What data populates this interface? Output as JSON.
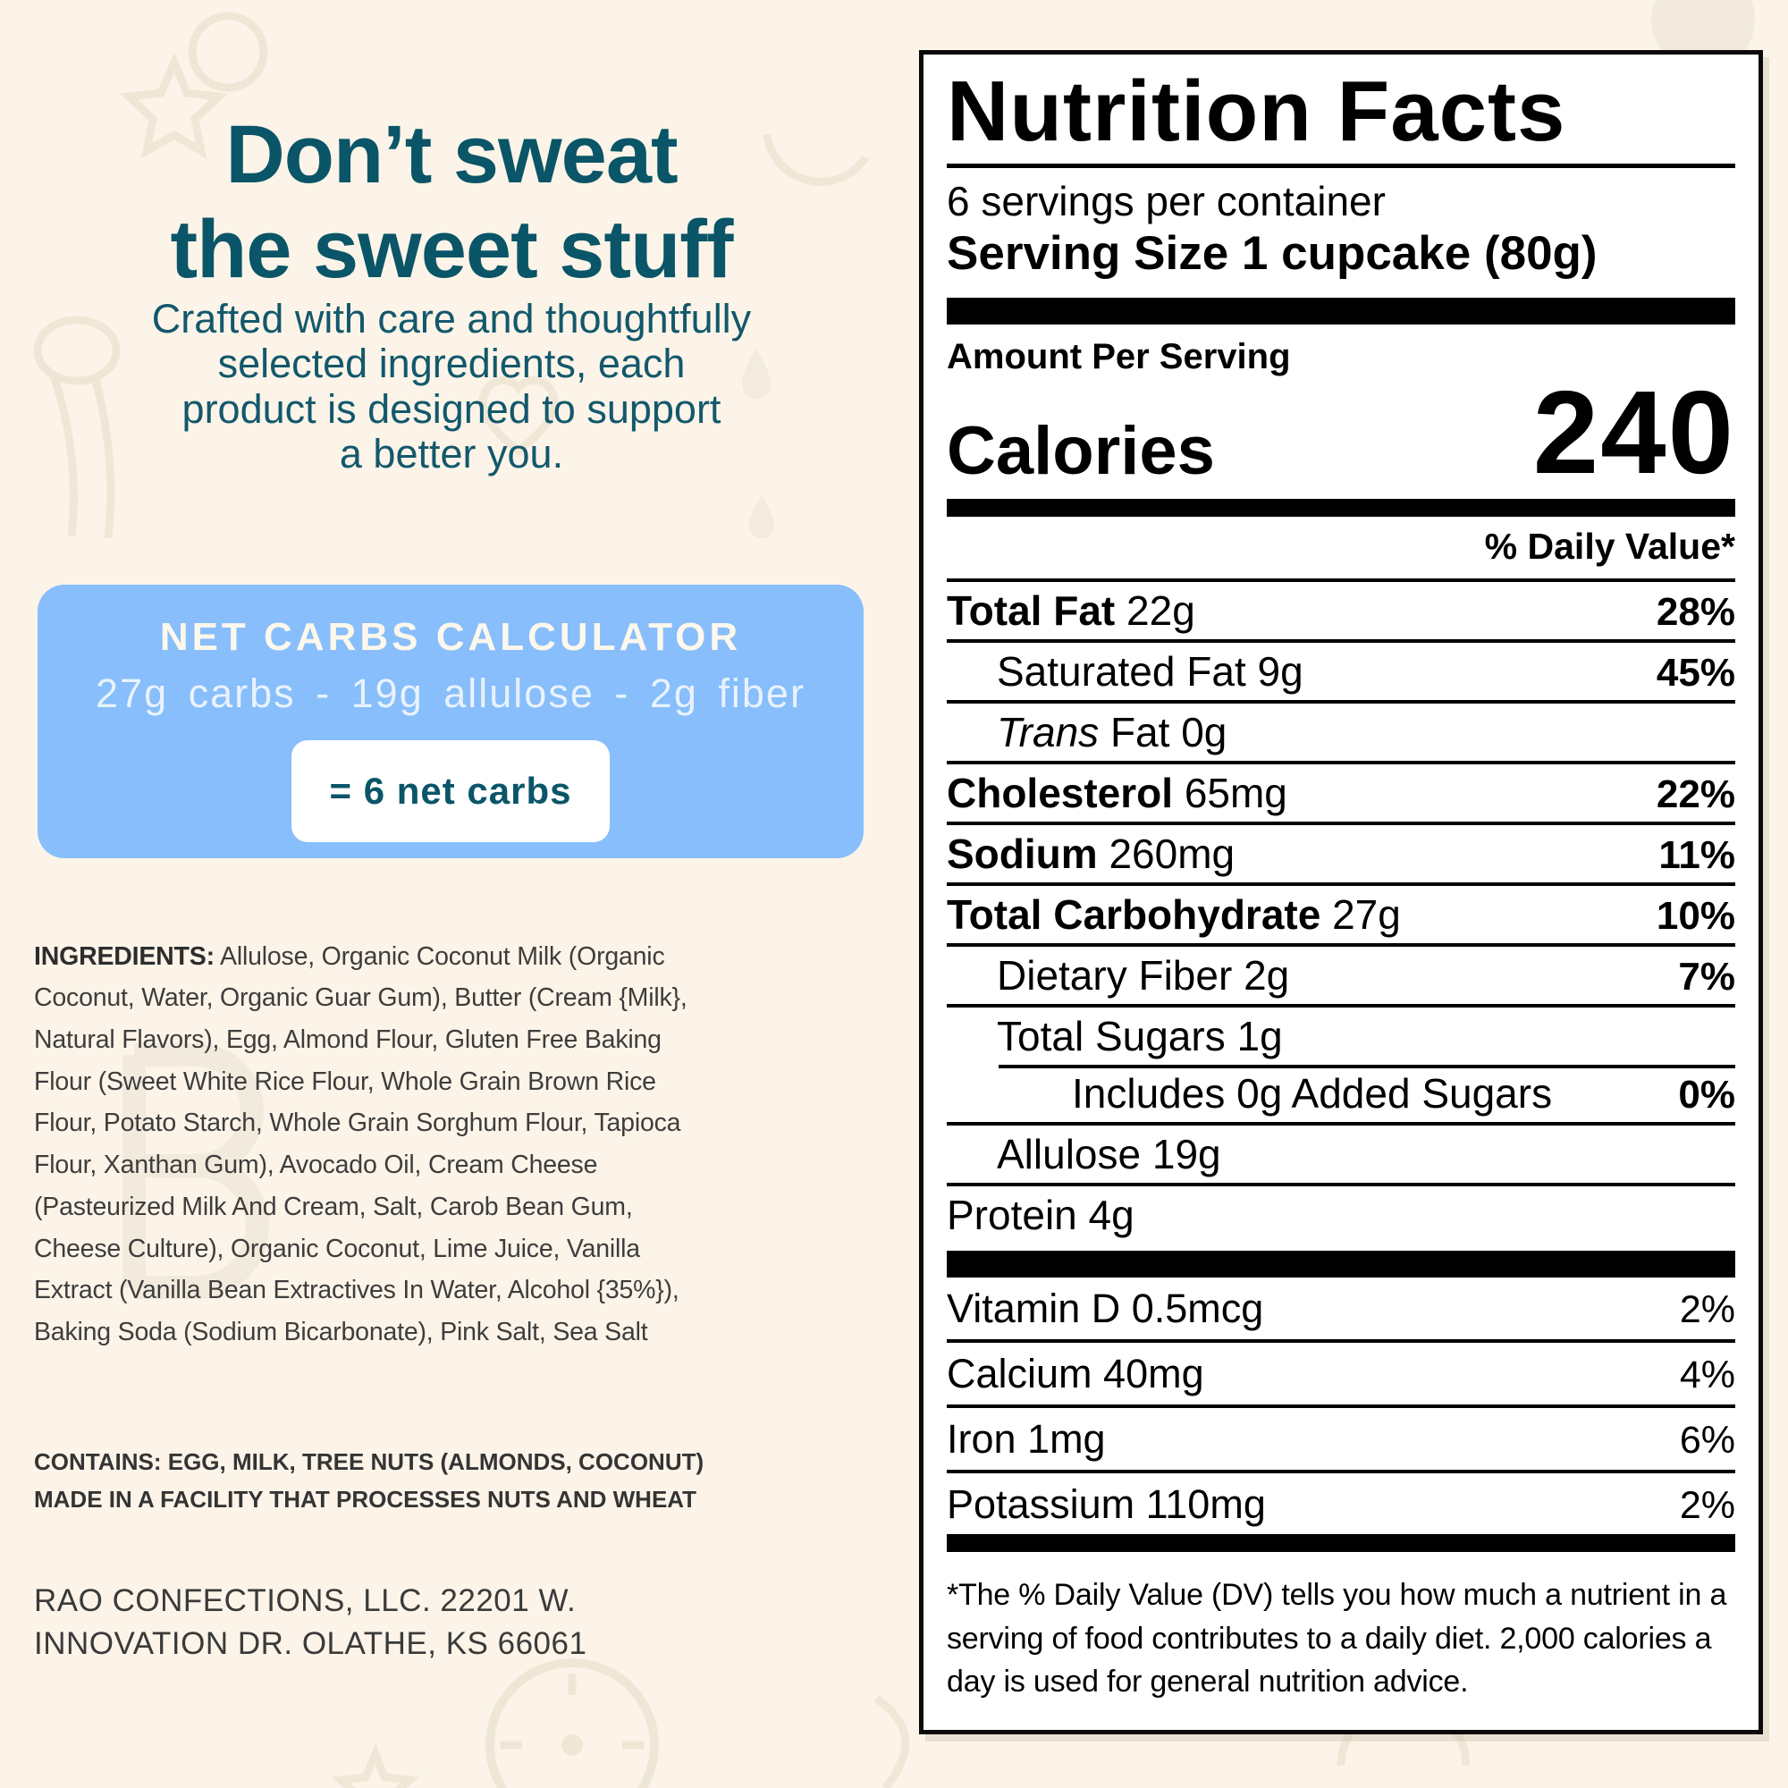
{
  "colors": {
    "teal": "#0a5568",
    "blue": "#87befb",
    "cream": "#fcf4e8",
    "panel_bg": "#ffffff",
    "ink": "#000000",
    "body_text": "#3e3d3d"
  },
  "left": {
    "heading_lines": [
      "Don’t sweat",
      "the sweet stuff"
    ],
    "intro_lines": [
      "Crafted with care and thoughtfully",
      "selected ingredients, each",
      "product is designed to support",
      "a better you."
    ],
    "calculator": {
      "title": "NET CARBS CALCULATOR",
      "formula": "27g carbs - 19g allulose - 2g fiber",
      "result": "= 6 net carbs"
    },
    "ingredients_label": "INGREDIENTS:",
    "ingredients_text": "Allulose, Organic Coconut Milk (Organic Coconut, Water, Organic Guar Gum), Butter (Cream {Milk}, Natural Flavors), Egg, Almond Flour, Gluten Free Baking Flour (Sweet White Rice Flour, Whole Grain Brown Rice Flour, Potato Starch, Whole Grain Sorghum Flour, Tapioca Flour, Xanthan Gum), Avocado Oil, Cream Cheese (Pasteurized Milk And Cream, Salt, Carob Bean Gum, Cheese Culture), Organic Coconut, Lime Juice, Vanilla Extract (Vanilla Bean Extractives In Water, Alcohol {35%}), Baking Soda (Sodium Bicarbonate), Pink Salt, Sea Salt",
    "contains_lines": [
      "CONTAINS: EGG, MILK, TREE NUTS (ALMONDS, COCONUT)",
      "MADE IN A FACILITY THAT PROCESSES NUTS AND WHEAT"
    ],
    "address_lines": [
      "RAO CONFECTIONS, LLC. 22201 W.",
      "INNOVATION DR. OLATHE, KS 66061"
    ]
  },
  "label": {
    "title": "Nutrition Facts",
    "servings": "6 servings per container",
    "serving_size": "Serving Size 1 cupcake (80g)",
    "amount_per_serving": "Amount Per Serving",
    "calories_label": "Calories",
    "calories_value": "240",
    "daily_value_header": "% Daily Value*",
    "rows": [
      {
        "key": "total-fat",
        "name": "Total Fat",
        "bold": true,
        "amount": "22g",
        "dv": "28%",
        "dv_bold": true,
        "indent": 0
      },
      {
        "key": "saturated-fat",
        "name": "Saturated Fat",
        "bold": false,
        "amount": "9g",
        "dv": "45%",
        "dv_bold": true,
        "indent": 1
      },
      {
        "key": "trans-fat",
        "italic": "Trans",
        "name": " Fat",
        "bold": false,
        "amount": "0g",
        "dv": "",
        "indent": 1
      },
      {
        "key": "cholesterol",
        "name": "Cholesterol",
        "bold": true,
        "amount": "65mg",
        "dv": "22%",
        "dv_bold": true,
        "indent": 0
      },
      {
        "key": "sodium",
        "name": "Sodium",
        "bold": true,
        "amount": "260mg",
        "dv": "11%",
        "dv_bold": true,
        "indent": 0
      },
      {
        "key": "total-carbohydrate",
        "name": "Total Carbohydrate",
        "bold": true,
        "amount": "27g",
        "dv": "10%",
        "dv_bold": true,
        "indent": 0
      },
      {
        "key": "dietary-fiber",
        "name": "Dietary Fiber",
        "bold": false,
        "amount": "2g",
        "dv": "7%",
        "dv_bold": true,
        "indent": 1
      },
      {
        "key": "total-sugars",
        "name": "Total Sugars",
        "bold": false,
        "amount": "1g",
        "dv": "",
        "indent": 1
      },
      {
        "key": "added-sugars",
        "name": "Includes 0g Added Sugars",
        "bold": false,
        "amount": "",
        "dv": "0%",
        "dv_bold": true,
        "indent": 2,
        "rule": "indent"
      },
      {
        "key": "allulose",
        "name": "Allulose",
        "bold": false,
        "amount": "19g",
        "dv": "",
        "indent": 1
      },
      {
        "key": "protein",
        "name": "Protein",
        "bold": false,
        "amount": "4g",
        "dv": "",
        "indent": 0
      }
    ],
    "micronutrients": [
      {
        "key": "vitamin-d",
        "name": "Vitamin D",
        "amount": "0.5mcg",
        "dv": "2%"
      },
      {
        "key": "calcium",
        "name": "Calcium",
        "amount": "40mg",
        "dv": "4%"
      },
      {
        "key": "iron",
        "name": "Iron",
        "amount": "1mg",
        "dv": "6%"
      },
      {
        "key": "potassium",
        "name": "Potassium",
        "amount": "110mg",
        "dv": "2%"
      }
    ],
    "footnote": "*The % Daily Value (DV) tells you how much a nutrient in a serving of food contributes to a daily diet. 2,000 calories a day is used for general nutrition advice."
  }
}
